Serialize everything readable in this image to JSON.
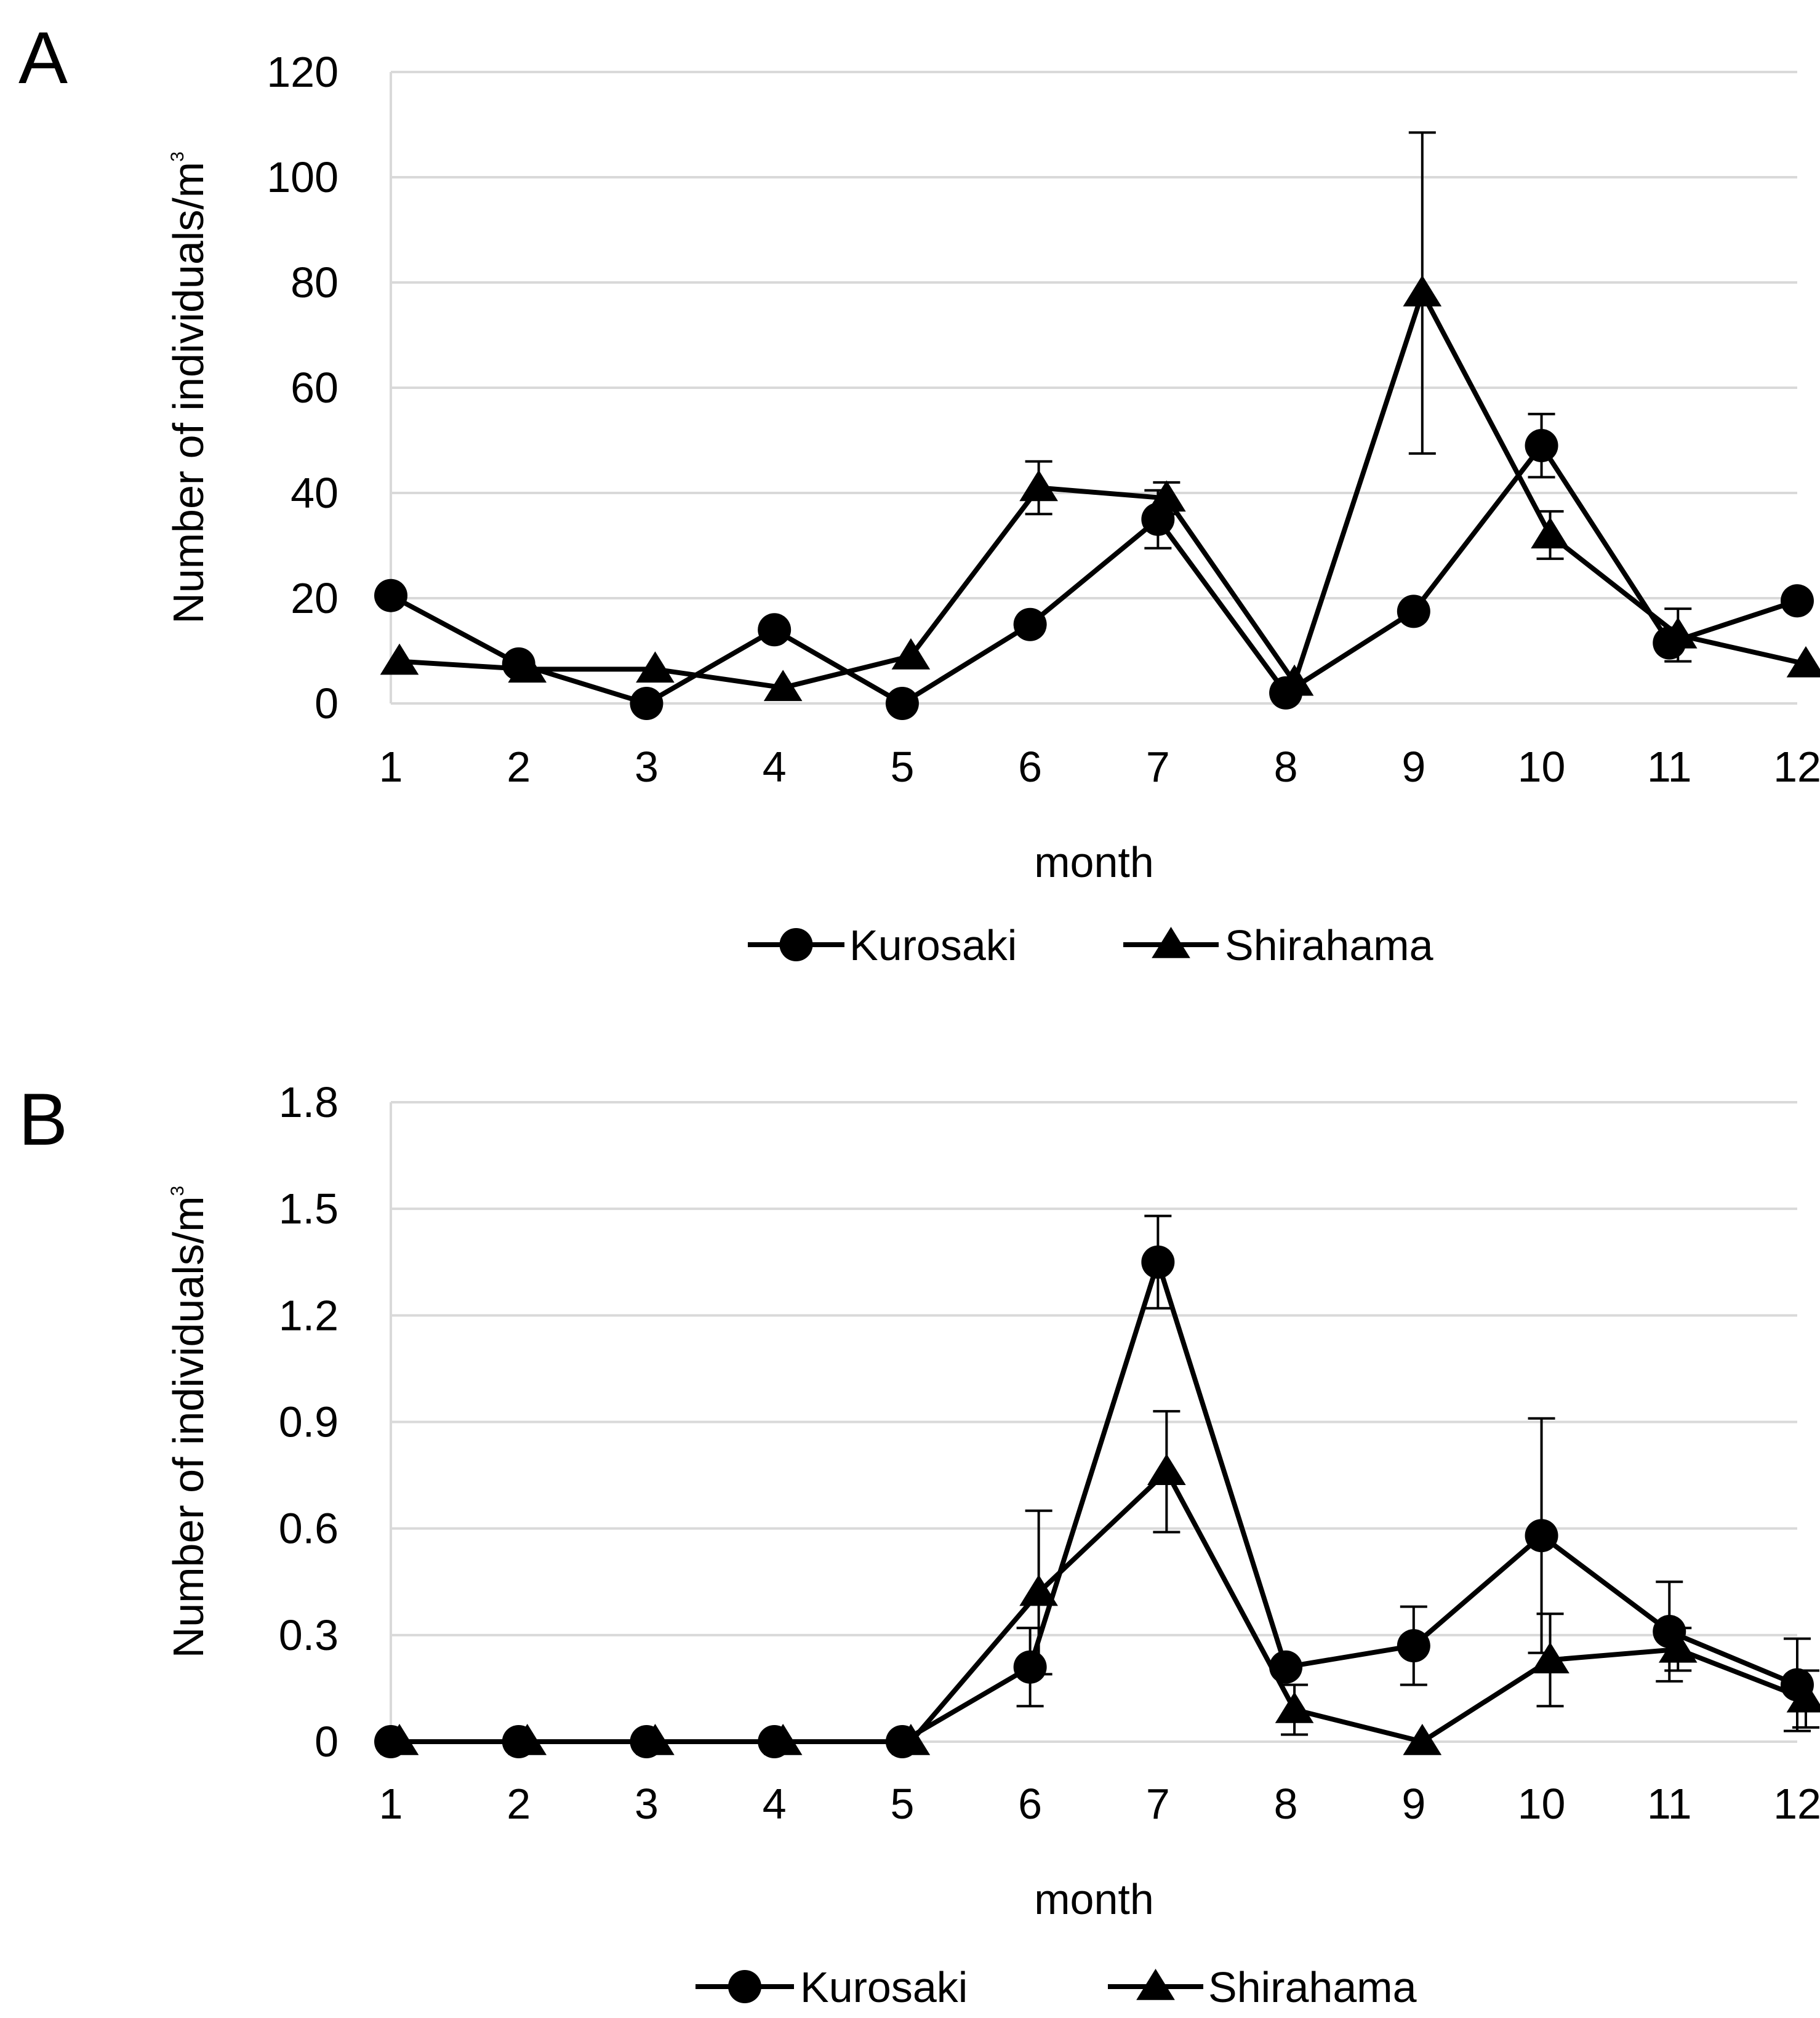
{
  "panels": [
    {
      "label": "A",
      "chart_data": {
        "type": "line",
        "title": "",
        "xlabel": "month",
        "ylabel": "Number of individuals/m",
        "ylabel_sup": "3",
        "categories": [
          "1",
          "2",
          "3",
          "4",
          "5",
          "6",
          "7",
          "8",
          "9",
          "10",
          "11",
          "12"
        ],
        "ylim": [
          0,
          120
        ],
        "yticks": [
          0,
          20,
          40,
          60,
          80,
          100,
          120
        ],
        "ytick_labels": [
          "0",
          "20",
          "40",
          "60",
          "80",
          "100",
          "120"
        ],
        "grid": true,
        "legend": "bottom",
        "series": [
          {
            "name": "Kurosaki",
            "marker": "circle",
            "values": [
              20.5,
              7.5,
              0,
              14,
              0,
              15,
              35,
              2,
              17.5,
              49,
              11.5,
              19.5
            ],
            "errors": [
              0,
              0,
              0,
              0,
              0,
              0,
              5.5,
              0,
              0,
              6,
              0,
              0
            ]
          },
          {
            "name": "Shirahama",
            "marker": "triangle",
            "values": [
              8,
              6.5,
              6.5,
              3,
              9,
              41,
              39,
              4,
              78,
              32,
              13,
              7.5
            ],
            "errors": [
              0,
              0,
              0,
              0,
              0,
              5,
              3,
              0,
              30.5,
              4.5,
              5,
              0
            ]
          }
        ]
      }
    },
    {
      "label": "B",
      "chart_data": {
        "type": "line",
        "title": "",
        "xlabel": "month",
        "ylabel": "Number of individuals/m",
        "ylabel_sup": "3",
        "categories": [
          "1",
          "2",
          "3",
          "4",
          "5",
          "6",
          "7",
          "8",
          "9",
          "10",
          "11",
          "12"
        ],
        "ylim": [
          0,
          1.8
        ],
        "yticks": [
          0,
          0.3,
          0.6,
          0.9,
          1.2,
          1.5,
          1.8
        ],
        "ytick_labels": [
          "0",
          "0.3",
          "0.6",
          "0.9",
          "1.2",
          "1.5",
          "1.8"
        ],
        "grid": true,
        "legend": "bottom",
        "series": [
          {
            "name": "Kurosaki",
            "marker": "circle",
            "values": [
              0,
              0,
              0,
              0,
              0,
              0.21,
              1.35,
              0.21,
              0.27,
              0.58,
              0.31,
              0.16
            ],
            "errors": [
              0,
              0,
              0,
              0,
              0,
              0.11,
              0.13,
              0,
              0.11,
              0.33,
              0.14,
              0.13
            ]
          },
          {
            "name": "Shirahama",
            "marker": "triangle",
            "values": [
              0,
              0,
              0,
              0,
              0,
              0.42,
              0.76,
              0.09,
              0,
              0.23,
              0.26,
              0.12
            ],
            "errors": [
              0,
              0,
              0,
              0,
              0,
              0.23,
              0.17,
              0.07,
              0,
              0.13,
              0.06,
              0.08
            ]
          }
        ]
      }
    }
  ]
}
